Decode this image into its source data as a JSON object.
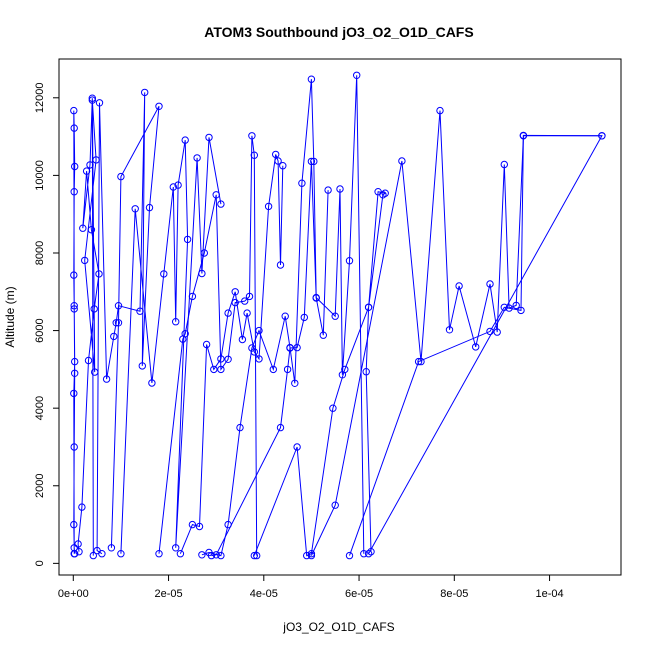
{
  "chart_data": {
    "type": "line",
    "title": "ATOM3 Southbound jO3_O2_O1D_CAFS",
    "xlabel": "jO3_O2_O1D_CAFS",
    "ylabel": "Altitude (m)",
    "xlim": [
      -3e-06,
      0.000115
    ],
    "ylim": [
      -300,
      13000
    ],
    "x_ticks": [
      0,
      2e-05,
      4e-05,
      6e-05,
      8e-05,
      0.0001
    ],
    "x_tick_labels": [
      "0e+00",
      "2e-05",
      "4e-05",
      "6e-05",
      "8e-05",
      "1e-04"
    ],
    "y_ticks": [
      0,
      2000,
      4000,
      6000,
      8000,
      10000,
      12000
    ],
    "y_tick_labels": [
      "0",
      "2000",
      "4000",
      "6000",
      "8000",
      "10000",
      "12000"
    ],
    "grid": false,
    "legend": "none",
    "series_color": "#0000ff",
    "series": [
      {
        "x": [
          2e-07,
          1e-07,
          3e-07,
          2e-07,
          1e-07,
          2e-07,
          3e-07,
          2e-07,
          1e-07,
          2e-07,
          3e-07,
          2e-07,
          1e-07,
          2e-07,
          3e-07
        ],
        "y": [
          250,
          4380,
          5200,
          6640,
          7430,
          9580,
          10230,
          11220,
          11670,
          6560,
          4900,
          3000,
          1000,
          400,
          250
        ]
      },
      {
        "x": [
          1.2e-06,
          1e-06,
          1.8e-06,
          3.2e-06,
          4.4e-06,
          5.4e-06,
          3.8e-06,
          2.8e-06,
          2e-06,
          3.5e-06,
          4e-06,
          4.5e-06,
          2.4e-06,
          4.8e-06,
          4e-06,
          4.2e-06
        ],
        "y": [
          300,
          500,
          1450,
          5230,
          6560,
          7460,
          8600,
          10110,
          8640,
          10270,
          11990,
          4930,
          7810,
          10400,
          11940,
          200
        ]
      },
      {
        "x": [
          6e-06,
          5e-06,
          5.5e-06,
          7e-06,
          8.5e-06,
          9e-06,
          9.5e-06,
          1.4e-05,
          1.5e-05,
          1.45e-05,
          1.6e-05,
          1.8e-05,
          1e-05,
          9.5e-06,
          8e-06
        ],
        "y": [
          250,
          330,
          11870,
          4750,
          5850,
          6200,
          6640,
          6500,
          12140,
          5090,
          9170,
          11780,
          9970,
          6200,
          400
        ]
      },
      {
        "x": [
          1e-05,
          1.3e-05,
          1.65e-05,
          1.9e-05,
          2.1e-05,
          2.15e-05,
          2.2e-05,
          2.35e-05,
          2.4e-05,
          2.15e-05,
          2.6e-05,
          2.7e-05,
          2.85e-05,
          3.1e-05
        ],
        "y": [
          250,
          9140,
          4650,
          7460,
          9700,
          6230,
          9750,
          10910,
          8350,
          400,
          10450,
          7470,
          10980,
          9260
        ]
      },
      {
        "x": [
          1.8e-05,
          2.3e-05,
          2.35e-05,
          2.5e-05,
          2.75e-05,
          3e-05,
          3.1e-05,
          3.25e-05,
          3.4e-05,
          3.6e-05,
          3.7e-05,
          3.75e-05,
          3.8e-05,
          3.85e-05
        ],
        "y": [
          250,
          5780,
          5920,
          6880,
          8000,
          9500,
          5000,
          5260,
          6720,
          6760,
          6880,
          11020,
          10520,
          200
        ]
      },
      {
        "x": [
          2.25e-05,
          2.5e-05,
          2.65e-05,
          2.8e-05,
          2.95e-05,
          3.1e-05,
          3.25e-05,
          3.4e-05,
          3.55e-05,
          3.65e-05,
          3.8e-05,
          3.9e-05,
          4.1e-05,
          4.25e-05,
          4.3e-05,
          4.35e-05,
          4.4e-05
        ],
        "y": [
          250,
          1000,
          950,
          5640,
          5000,
          5270,
          6450,
          7000,
          5770,
          6450,
          5450,
          5270,
          9200,
          10540,
          10370,
          7690,
          10250
        ]
      },
      {
        "x": [
          2.7e-05,
          2.85e-05,
          3.1e-05,
          3.25e-05,
          3.5e-05,
          3.75e-05,
          3.9e-05,
          4.2e-05,
          4.45e-05,
          4.55e-05,
          4.65e-05,
          4.8e-05,
          5e-05,
          5.05e-05,
          5.1e-05,
          5.25e-05,
          5.35e-05
        ],
        "y": [
          220,
          280,
          200,
          1000,
          3500,
          5550,
          6000,
          5000,
          6370,
          5560,
          4640,
          9800,
          12480,
          10360,
          6840,
          5880,
          9620
        ]
      },
      {
        "x": [
          2.9e-05,
          3e-05,
          4.35e-05,
          4.5e-05,
          4.55e-05,
          4.7e-05,
          4.85e-05,
          5e-05,
          5.1e-05,
          5.5e-05,
          5.6e-05,
          5.65e-05,
          5.8e-05,
          5.95e-05,
          6.1e-05
        ],
        "y": [
          200,
          220,
          3500,
          5000,
          5550,
          5560,
          6340,
          10360,
          6850,
          6370,
          9650,
          4860,
          7800,
          12580,
          250
        ]
      },
      {
        "x": [
          3.8e-05,
          4.7e-05,
          4.9e-05,
          5e-05,
          5.45e-05,
          5.7e-05,
          6.2e-05,
          6.4e-05,
          6.55e-05,
          6.5e-05,
          6.2e-05,
          6.15e-05,
          6.25e-05
        ],
        "y": [
          200,
          3000,
          200,
          250,
          4000,
          5000,
          6600,
          9580,
          9540,
          9500,
          6600,
          4940,
          300
        ]
      },
      {
        "x": [
          5e-05,
          5.5e-05,
          6.9e-05,
          7.3e-05,
          7.7e-05,
          7.9e-05,
          8.1e-05,
          8.45e-05,
          8.75e-05,
          8.9e-05,
          9.05e-05,
          9.15e-05,
          9.3e-05,
          9.45e-05,
          0.000111
        ],
        "y": [
          200,
          1500,
          10370,
          5200,
          11670,
          6020,
          7150,
          5580,
          7200,
          5960,
          10280,
          6580,
          6650,
          11020,
          11020
        ]
      },
      {
        "x": [
          5.8e-05,
          7.25e-05,
          8.75e-05,
          9.05e-05,
          9.4e-05,
          9.45e-05,
          0.000111,
          6.2e-05
        ],
        "y": [
          200,
          5200,
          5980,
          6600,
          6520,
          11030,
          11020,
          250
        ]
      }
    ]
  }
}
